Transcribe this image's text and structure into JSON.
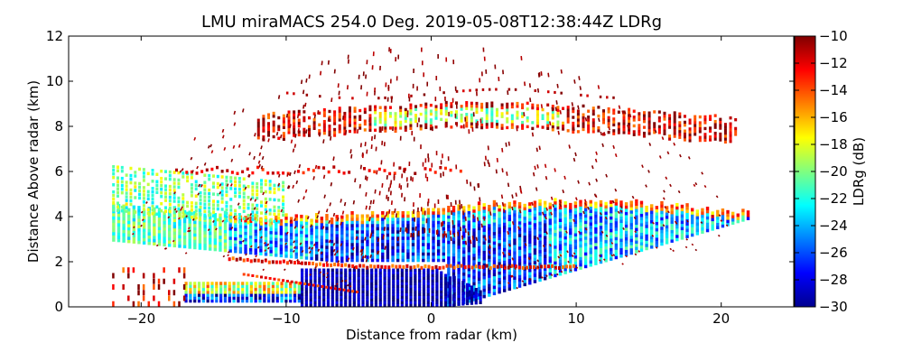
{
  "chart_data": {
    "type": "heatmap",
    "title": "LMU miraMACS 254.0 Deg. 2019-05-08T12:38:44Z  LDRg",
    "xlabel": "Distance from radar (km)",
    "ylabel": "Distance Above radar  (km)",
    "xlim": [
      -25,
      25
    ],
    "ylim": [
      0,
      12
    ],
    "xticks": [
      -20,
      -10,
      0,
      10,
      20
    ],
    "yticks": [
      0,
      2,
      4,
      6,
      8,
      10,
      12
    ],
    "xtick_labels": [
      "−20",
      "−10",
      "0",
      "10",
      "20"
    ],
    "ytick_labels": [
      "0",
      "2",
      "4",
      "6",
      "8",
      "10",
      "12"
    ],
    "colorbar": {
      "label": "LDRg (dB)",
      "range": [
        -30,
        -10
      ],
      "ticks": [
        -30,
        -28,
        -26,
        -24,
        -22,
        -20,
        -18,
        -16,
        -14,
        -12,
        -10
      ],
      "tick_labels": [
        "−30",
        "−28",
        "−26",
        "−24",
        "−22",
        "−20",
        "−18",
        "−16",
        "−14",
        "−12",
        "−10"
      ],
      "colormap": "jet"
    },
    "features": [
      {
        "name": "main-layer",
        "x_range": [
          -22,
          22
        ],
        "z_range": [
          2.0,
          4.8
        ],
        "value_db": -24
      },
      {
        "name": "upper-layer",
        "x_range": [
          -12,
          21
        ],
        "z_range": [
          7.3,
          8.8
        ],
        "value_db": -14
      },
      {
        "name": "low-level-depolarization",
        "x_range": [
          -22,
          2
        ],
        "z_range": [
          0.0,
          1.8
        ],
        "value_db": -28
      },
      {
        "name": "melting-band",
        "x_range": [
          -14,
          10
        ],
        "z_range": [
          1.6,
          2.0
        ],
        "value_db": -13
      },
      {
        "name": "slant-left-band",
        "x_range": [
          -22,
          -10
        ],
        "z_range": [
          3.8,
          6.4
        ],
        "value_db": -20
      },
      {
        "name": "scattered-clutter",
        "x_range": [
          -20,
          20
        ],
        "z_range": [
          0.0,
          12.0
        ],
        "value_db": -11
      }
    ]
  }
}
